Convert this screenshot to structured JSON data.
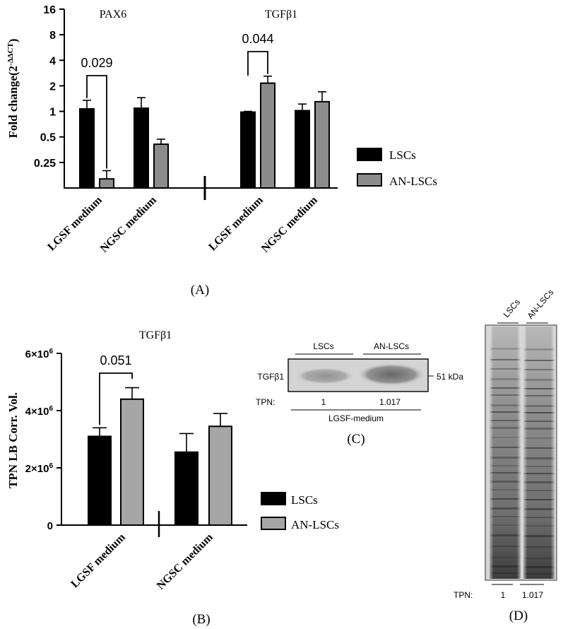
{
  "chart_data": [
    {
      "panel_label": "(A)",
      "type": "bar",
      "ylabel": "Fold change(2",
      "ylabel_sup": "-ΔΔCT",
      "ylabel_close": ")",
      "yscale": "log2",
      "ylim": [
        0.125,
        16
      ],
      "yticks": [
        0.25,
        0.5,
        1,
        2,
        4,
        8,
        16
      ],
      "ytick_labels": [
        "0.25",
        "0.5",
        "1",
        "2",
        "4",
        "8",
        "16"
      ],
      "groups": [
        {
          "title": "PAX6",
          "categories": [
            "LGSF medium",
            "NGSC medium"
          ],
          "series": [
            {
              "name": "LSCs",
              "values": [
                1.07,
                1.09
              ],
              "errors": [
                1.35,
                1.45
              ]
            },
            {
              "name": "AN-LSCs",
              "values": [
                0.16,
                0.41
              ],
              "errors": [
                0.2,
                0.47
              ]
            }
          ],
          "annotation": {
            "text": "0.029",
            "category": 0
          }
        },
        {
          "title": "TGFβ1",
          "categories": [
            "LGSF medium",
            "NGSC medium"
          ],
          "series": [
            {
              "name": "LSCs",
              "values": [
                0.98,
                1.02
              ],
              "errors": [
                1.0,
                1.22
              ]
            },
            {
              "name": "AN-LSCs",
              "values": [
                2.15,
                1.3
              ],
              "errors": [
                2.6,
                1.7
              ]
            }
          ],
          "annotation": {
            "text": "0.044",
            "category": 0
          }
        }
      ],
      "legend": [
        "LSCs",
        "AN-LSCs"
      ],
      "legend_position": "right",
      "colors": {
        "LSCs": "#000000",
        "AN-LSCs": "#8c8c8c"
      }
    },
    {
      "panel_label": "(B)",
      "type": "bar",
      "title": "TGFβ1",
      "ylabel": "TPN LB Corr. Vol.",
      "ylim": [
        0,
        6000000
      ],
      "yticks": [
        0,
        2000000,
        4000000,
        6000000
      ],
      "ytick_labels": [
        {
          "base": "0",
          "exp": ""
        },
        {
          "base": "2×10",
          "exp": "6"
        },
        {
          "base": "4×10",
          "exp": "6"
        },
        {
          "base": "6×10",
          "exp": "6"
        }
      ],
      "categories": [
        "LGSF medium",
        "NGSC medium"
      ],
      "series": [
        {
          "name": "LSCs",
          "values": [
            3100000,
            2550000
          ],
          "errors": [
            3400000,
            3200000
          ]
        },
        {
          "name": "AN-LSCs",
          "values": [
            4400000,
            3450000
          ],
          "errors": [
            4800000,
            3900000
          ]
        }
      ],
      "annotation": {
        "text": "0.051",
        "category": 0
      },
      "legend": [
        "LSCs",
        "AN-LSCs"
      ],
      "legend_position": "right",
      "colors": {
        "LSCs": "#000000",
        "AN-LSCs": "#a6a6a6"
      }
    }
  ],
  "blot_c": {
    "panel_label": "(C)",
    "lanes": [
      "LSCs",
      "AN-LSCs"
    ],
    "protein": "TGFβ1",
    "size_marker": "51 kDa",
    "tpn_label": "TPN:",
    "tpn_values": [
      "1",
      "1.017"
    ],
    "condition": "LGSF-medium"
  },
  "blot_d": {
    "panel_label": "(D)",
    "lanes": [
      "LSCs",
      "AN-LSCs"
    ],
    "tpn_label": "TPN:",
    "tpn_values": [
      "1",
      "1.017"
    ]
  }
}
